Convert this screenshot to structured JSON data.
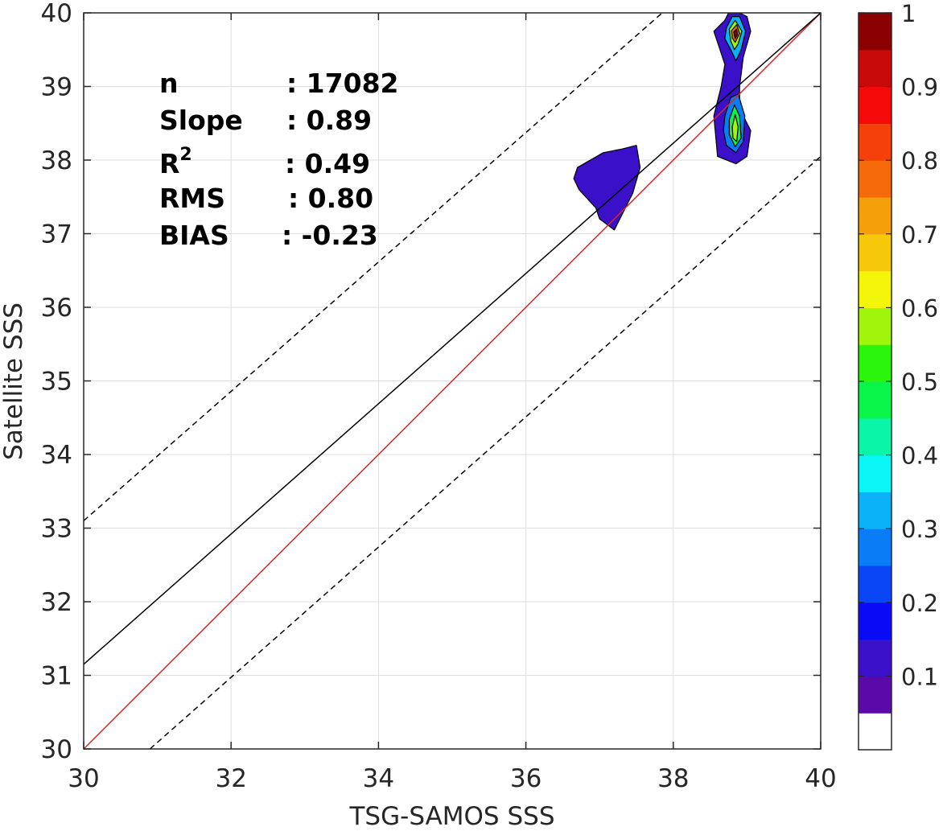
{
  "chart_data": {
    "type": "contour",
    "xlabel": "TSG-SAMOS SSS",
    "ylabel": "Satellite SSS",
    "xlim": [
      30,
      40
    ],
    "ylim": [
      30,
      40
    ],
    "x_ticks": [
      "30",
      "32",
      "34",
      "36",
      "38",
      "40"
    ],
    "y_ticks": [
      "30",
      "31",
      "32",
      "33",
      "34",
      "35",
      "36",
      "37",
      "38",
      "39",
      "40"
    ],
    "grid": true,
    "lines": [
      {
        "kind": "one-to-one",
        "color": "#d62728",
        "style": "solid",
        "points": [
          [
            30,
            30
          ],
          [
            40,
            40
          ]
        ]
      },
      {
        "kind": "regression-fit",
        "color": "#000000",
        "style": "solid",
        "points": [
          [
            30,
            31.15
          ],
          [
            40,
            40
          ]
        ]
      },
      {
        "kind": "upper-bound",
        "color": "#000000",
        "style": "dashed",
        "points": [
          [
            30,
            33.1
          ],
          [
            37.85,
            40
          ]
        ]
      },
      {
        "kind": "lower-bound",
        "color": "#000000",
        "style": "dashed",
        "points": [
          [
            30.9,
            30
          ],
          [
            40,
            38.05
          ]
        ]
      }
    ],
    "density_regions": [
      {
        "x": [
          36.7,
          37.05,
          37.3,
          37.5,
          37.55,
          37.45,
          37.2,
          37.0,
          36.95,
          36.72,
          36.65
        ],
        "y": [
          37.9,
          38.1,
          38.15,
          38.2,
          37.9,
          37.55,
          37.05,
          37.2,
          37.35,
          37.6,
          37.75
        ],
        "level": 0.1
      },
      {
        "x": [
          38.7,
          38.75,
          38.9,
          39.0,
          39.05,
          38.95,
          38.9,
          38.9,
          39.05,
          39.0,
          38.85,
          38.6,
          38.55,
          38.65,
          38.7,
          38.6,
          38.55
        ],
        "y": [
          39.9,
          40.0,
          40.0,
          39.95,
          39.75,
          39.4,
          39.0,
          38.7,
          38.4,
          38.05,
          37.95,
          38.05,
          38.6,
          39.0,
          39.3,
          39.6,
          39.75
        ],
        "level": 0.1
      },
      {
        "x": [
          38.72,
          38.8,
          38.9,
          38.98,
          38.92,
          38.85,
          38.78,
          38.7
        ],
        "y": [
          39.8,
          39.95,
          39.95,
          39.75,
          39.5,
          39.35,
          39.5,
          39.65
        ],
        "level": 0.3
      },
      {
        "x": [
          38.76,
          38.84,
          38.93,
          38.88,
          38.83,
          38.78
        ],
        "y": [
          39.78,
          39.9,
          39.75,
          39.58,
          39.5,
          39.62
        ],
        "level": 0.55
      },
      {
        "x": [
          38.79,
          38.86,
          38.9,
          38.84,
          38.8
        ],
        "y": [
          39.76,
          39.84,
          39.72,
          39.6,
          39.66
        ],
        "level": 0.75
      },
      {
        "x": [
          38.82,
          38.86,
          38.87,
          38.84
        ],
        "y": [
          39.74,
          39.78,
          39.7,
          39.65
        ],
        "level": 0.95
      },
      {
        "x": [
          38.7,
          38.78,
          38.88,
          38.97,
          38.95,
          38.85,
          38.72,
          38.68
        ],
        "y": [
          38.6,
          38.85,
          38.9,
          38.6,
          38.25,
          38.1,
          38.2,
          38.4
        ],
        "level": 0.25
      },
      {
        "x": [
          38.76,
          38.83,
          38.9,
          38.92,
          38.84,
          38.76
        ],
        "y": [
          38.55,
          38.75,
          38.6,
          38.3,
          38.18,
          38.35
        ],
        "level": 0.45
      },
      {
        "x": [
          38.8,
          38.84,
          38.88,
          38.86,
          38.81
        ],
        "y": [
          38.45,
          38.62,
          38.45,
          38.25,
          38.3
        ],
        "level": 0.55
      }
    ],
    "colorbar": {
      "range": [
        0,
        1
      ],
      "ticks": [
        "0.1",
        "0.2",
        "0.3",
        "0.4",
        "0.5",
        "0.6",
        "0.7",
        "0.8",
        "0.9",
        "1"
      ],
      "top_label": "1",
      "colors": [
        "#ffffff",
        "#5a0aa8",
        "#3a10c8",
        "#0a0af5",
        "#0a46f5",
        "#0a7cf5",
        "#0ab2f5",
        "#0af5f5",
        "#0af5a8",
        "#0af54a",
        "#2af50a",
        "#a0f50a",
        "#f5f50a",
        "#f5c80a",
        "#f5a00a",
        "#f56a0a",
        "#f5400a",
        "#f50a0a",
        "#c80a0a",
        "#8b0000"
      ]
    },
    "stats": [
      {
        "label": "n",
        "value": ": 17082"
      },
      {
        "label": "Slope",
        "value": ": 0.89"
      },
      {
        "label": "R",
        "superscript": "2",
        "value": ": 0.49"
      },
      {
        "label": "RMS",
        "value": ": 0.80"
      },
      {
        "label": "BIAS",
        "value": ": -0.23"
      }
    ]
  }
}
